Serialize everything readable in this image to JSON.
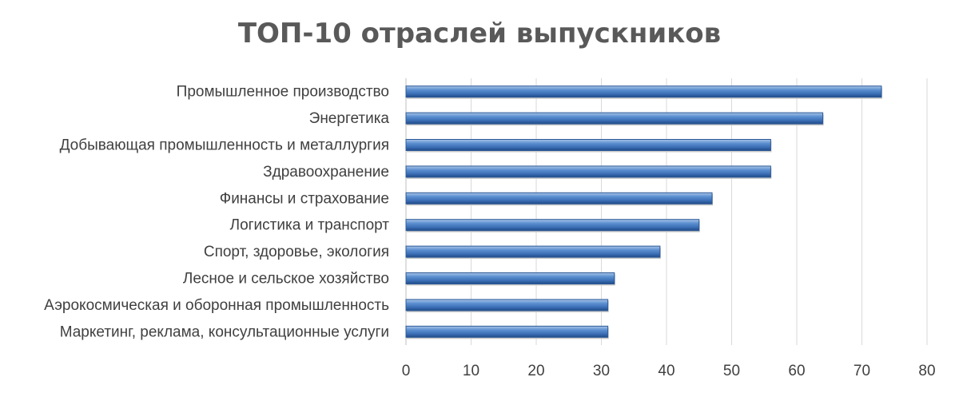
{
  "chart_data": {
    "type": "bar",
    "orientation": "horizontal",
    "title": "ТОП-10 отраслей выпускников",
    "categories": [
      "Промышленное производство",
      "Энергетика",
      "Добывающая промышленность и металлургия",
      "Здравоохранение",
      "Финансы и страхование",
      "Логистика и транспорт",
      "Спорт, здоровье, экология",
      "Лесное и сельское хозяйство",
      "Аэрокосмическая и оборонная промышленность",
      "Маркетинг, реклама, консультационные услуги"
    ],
    "values": [
      73,
      64,
      56,
      56,
      47,
      45,
      39,
      32,
      31,
      31
    ],
    "xlim": [
      0,
      80
    ],
    "xticks": [
      0,
      10,
      20,
      30,
      40,
      50,
      60,
      70,
      80
    ],
    "grid": true,
    "legend": "none",
    "bar_color": "#4f81bd"
  }
}
